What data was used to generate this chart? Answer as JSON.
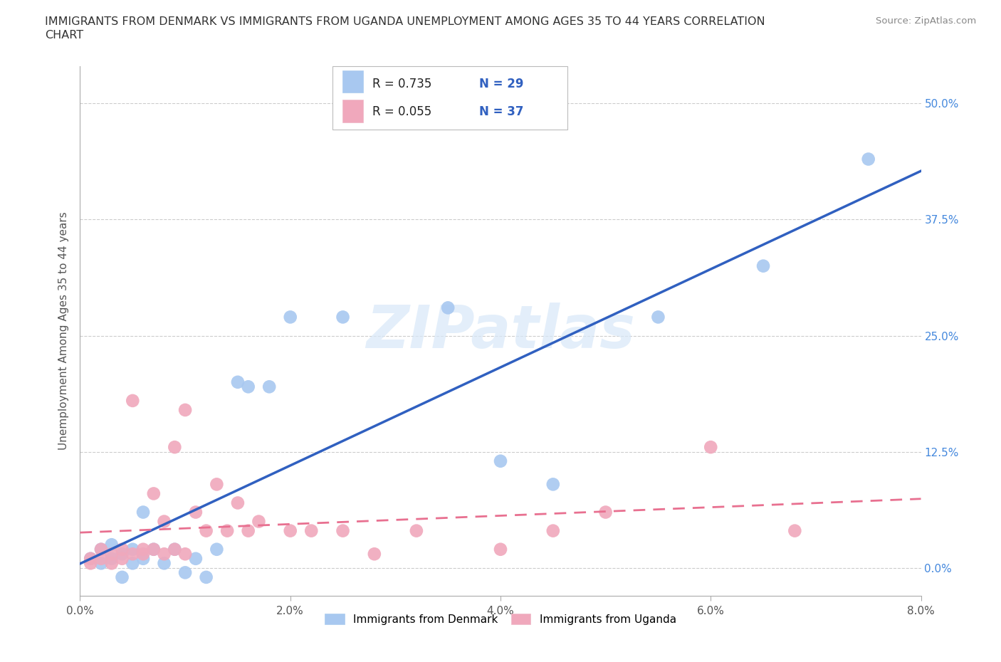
{
  "title_line1": "IMMIGRANTS FROM DENMARK VS IMMIGRANTS FROM UGANDA UNEMPLOYMENT AMONG AGES 35 TO 44 YEARS CORRELATION",
  "title_line2": "CHART",
  "source": "Source: ZipAtlas.com",
  "ylabel": "Unemployment Among Ages 35 to 44 years",
  "xlim": [
    0.0,
    0.08
  ],
  "ylim": [
    -0.03,
    0.54
  ],
  "xticks": [
    0.0,
    0.02,
    0.04,
    0.06,
    0.08
  ],
  "xtick_labels": [
    "0.0%",
    "2.0%",
    "4.0%",
    "6.0%",
    "8.0%"
  ],
  "yticks": [
    0.0,
    0.125,
    0.25,
    0.375,
    0.5
  ],
  "ytick_labels": [
    "0.0%",
    "12.5%",
    "25.0%",
    "37.5%",
    "50.0%"
  ],
  "denmark_color": "#a8c8f0",
  "uganda_color": "#f0a8bc",
  "denmark_line_color": "#3060c0",
  "uganda_line_color": "#e87090",
  "R_denmark": 0.735,
  "N_denmark": 29,
  "R_uganda": 0.055,
  "N_uganda": 37,
  "legend_label_denmark": "Immigrants from Denmark",
  "legend_label_uganda": "Immigrants from Uganda",
  "denmark_x": [
    0.001,
    0.002,
    0.002,
    0.003,
    0.003,
    0.004,
    0.004,
    0.005,
    0.005,
    0.006,
    0.006,
    0.007,
    0.008,
    0.009,
    0.01,
    0.011,
    0.012,
    0.013,
    0.015,
    0.016,
    0.018,
    0.02,
    0.025,
    0.035,
    0.04,
    0.045,
    0.055,
    0.065,
    0.075
  ],
  "denmark_y": [
    0.01,
    0.02,
    0.005,
    0.025,
    0.01,
    0.015,
    -0.01,
    0.005,
    0.02,
    0.06,
    0.01,
    0.02,
    0.005,
    0.02,
    -0.005,
    0.01,
    -0.01,
    0.02,
    0.2,
    0.195,
    0.195,
    0.27,
    0.27,
    0.28,
    0.115,
    0.09,
    0.27,
    0.325,
    0.44
  ],
  "uganda_x": [
    0.001,
    0.001,
    0.002,
    0.002,
    0.003,
    0.003,
    0.004,
    0.004,
    0.005,
    0.005,
    0.006,
    0.006,
    0.007,
    0.007,
    0.008,
    0.008,
    0.009,
    0.009,
    0.01,
    0.01,
    0.011,
    0.012,
    0.013,
    0.014,
    0.015,
    0.016,
    0.017,
    0.02,
    0.022,
    0.025,
    0.028,
    0.032,
    0.04,
    0.045,
    0.05,
    0.06,
    0.068
  ],
  "uganda_y": [
    0.01,
    0.005,
    0.02,
    0.01,
    0.015,
    0.005,
    0.02,
    0.01,
    0.015,
    0.18,
    0.02,
    0.015,
    0.02,
    0.08,
    0.015,
    0.05,
    0.02,
    0.13,
    0.015,
    0.17,
    0.06,
    0.04,
    0.09,
    0.04,
    0.07,
    0.04,
    0.05,
    0.04,
    0.04,
    0.04,
    0.015,
    0.04,
    0.02,
    0.04,
    0.06,
    0.13,
    0.04
  ]
}
